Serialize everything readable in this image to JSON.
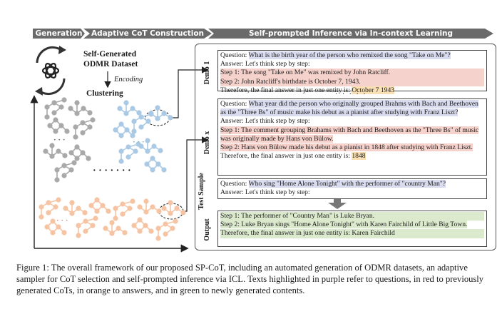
{
  "header": {
    "generation": "Generation",
    "adaptive": "Adaptive CoT Construction",
    "inference": "Self-prompted Inference via In-context Learning"
  },
  "left_panel": {
    "dataset_title_line1": "Self-Generated",
    "dataset_title_line2": "ODMR Dataset",
    "encoding_label": "Encoding",
    "clustering_label": "Clustering",
    "cluster_ellipsis": "· · ·",
    "big_ellipsis": "· · · ·  · · ·",
    "node_colors": {
      "gray": "#a9a9a9",
      "blue": "#a9c9e4",
      "orange": "#f6c4a3"
    }
  },
  "labels": {
    "demo1": "Demo 1",
    "demox": "Demo x",
    "test": "Test Sample",
    "output": "Output"
  },
  "demo1": {
    "question_prefix": "Question: ",
    "question": "What is the birth year of the person who remixed the song \"Take on Me\"?",
    "answer_intro": "Answer: Let's think step by step:",
    "step1": "Step 1: The song \"Take on Me\" was remixed by John Ratcliff.",
    "step2": "Step 2: John Ratcliff's birthdate is October 7, 1943.",
    "final_prefix": "Therefore, the final answer in just one entity is: ",
    "final_answer": "October 7 1943"
  },
  "between_dots": "· · · · ·",
  "demox": {
    "question_prefix": "Question: ",
    "question": "What year did the person who originally grouped Brahms with Bach and Beethoven as the \"Three Bs\" of music make his debut as a pianist after studying with Franz Liszt?",
    "answer_intro": "Answer: Let's think step by step:",
    "step1": "Step 1: The comment grouping Brahams with Bach and Beethoven as the \"Three Bs\" of music was originally made by Hans von Bülow.",
    "step2": "Step 2: Hans von Bülow made his debut as a pianist in 1848 after studying with Franz Liszt.",
    "final_prefix": "Therefore, the final answer in just one entity is: ",
    "final_answer": "1848"
  },
  "test": {
    "question_prefix": "Question: ",
    "question": "Who sing \"Home Alone Tonight\" with the performer of \"country Man\"?",
    "answer_intro": "Answer: Let's think step by step:"
  },
  "output": {
    "step1": "Step 1: The performer of \"Country Man\" is Luke Bryan.",
    "step2": "Step 2: Luke Bryan sings \"Home Alone Tonight\" with Karen Fairchild of Little Big Town.",
    "final": "Therefore, the final answer in just one entity is: Karen Fairchild"
  },
  "caption": "Figure 1: The overall framework of our proposed SP-CoT, including an automated generation of ODMR datasets, an adaptive sampler for CoT selection and self-prompted inference via ICL. Texts highlighted in purple refer to questions, in red to previously generated CoTs, in orange to answers, and in green to newly generated contents."
}
